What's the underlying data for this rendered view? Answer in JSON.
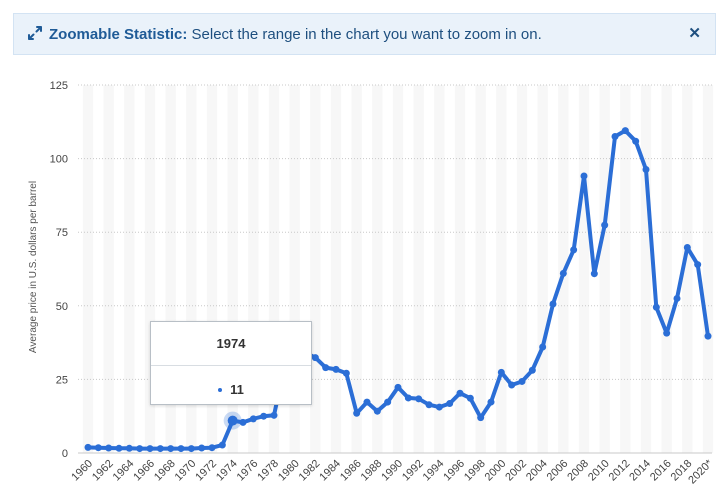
{
  "banner": {
    "title": "Zoomable Statistic:",
    "message": "Select the range in the chart you want to zoom in on.",
    "close_icon": "close-icon",
    "zoom_icon": "expand-arrows-icon"
  },
  "tooltip": {
    "year": "1974",
    "value": "11"
  },
  "colors": {
    "line": "#2b6ed6",
    "banner_bg": "#eaf2fa",
    "banner_text": "#1e4f7f"
  },
  "chart_data": {
    "type": "line",
    "title": "",
    "xlabel": "",
    "ylabel": "Average price in U.S. dollars per barrel",
    "ylim": [
      0,
      125
    ],
    "yticks": [
      0,
      25,
      50,
      75,
      100,
      125
    ],
    "grid": true,
    "x_tick_labels": [
      "1960",
      "1962",
      "1964",
      "1966",
      "1968",
      "1970",
      "1972",
      "1974",
      "1976",
      "1978",
      "1980",
      "1982",
      "1984",
      "1986",
      "1988",
      "1990",
      "1992",
      "1994",
      "1996",
      "1998",
      "2000",
      "2002",
      "2004",
      "2006",
      "2008",
      "2010",
      "2012",
      "2014",
      "2016",
      "2018",
      "2020*"
    ],
    "x": [
      1960,
      1961,
      1962,
      1963,
      1964,
      1965,
      1966,
      1967,
      1968,
      1969,
      1970,
      1971,
      1972,
      1973,
      1974,
      1975,
      1976,
      1977,
      1978,
      1979,
      1980,
      1981,
      1982,
      1983,
      1984,
      1985,
      1986,
      1987,
      1988,
      1989,
      1990,
      1991,
      1992,
      1993,
      1994,
      1995,
      1996,
      1997,
      1998,
      1999,
      2000,
      2001,
      2002,
      2003,
      2004,
      2005,
      2006,
      2007,
      2008,
      2009,
      2010,
      2011,
      2012,
      2013,
      2014,
      2015,
      2016,
      2017,
      2018,
      2019,
      2020
    ],
    "series": [
      {
        "values": [
          1.9,
          1.8,
          1.7,
          1.6,
          1.6,
          1.5,
          1.5,
          1.5,
          1.5,
          1.5,
          1.5,
          1.7,
          1.8,
          2.7,
          11,
          10.4,
          11.6,
          12.5,
          12.8,
          29.2,
          35.5,
          34.2,
          32.4,
          29.0,
          28.4,
          27.1,
          13.5,
          17.3,
          14.2,
          17.3,
          22.3,
          18.7,
          18.4,
          16.4,
          15.6,
          16.8,
          20.3,
          18.6,
          12.0,
          17.3,
          27.4,
          23.1,
          24.3,
          28.1,
          36.0,
          50.6,
          61.0,
          69.0,
          94.1,
          60.9,
          77.4,
          107.5,
          109.5,
          105.9,
          96.3,
          49.5,
          40.7,
          52.5,
          69.8,
          64.0,
          39.7
        ]
      }
    ],
    "highlight": {
      "x": 1974,
      "y": 11
    }
  }
}
